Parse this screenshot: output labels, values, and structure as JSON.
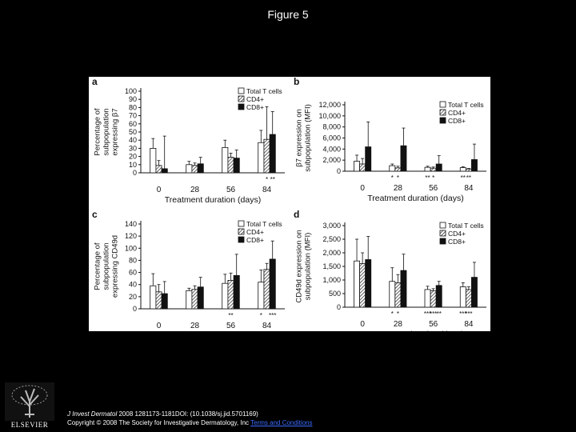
{
  "slide_title": "Figure 5",
  "footer": {
    "journal": "J Invest Dermatol",
    "citation": " 2008 1281173-1181DOI: (10.1038/sj.jid.5701169)",
    "copyright": "Copyright © 2008 The Society for Investigative Dermatology, Inc",
    "terms": "Terms and Conditions"
  },
  "logo": {
    "text": "ELSEVIER",
    "icon": "elsevier-tree-icon"
  },
  "colors": {
    "background": "#000000",
    "panel": "#ffffff",
    "cd8": "#111111",
    "total": "#ffffff"
  },
  "chart_data": [
    {
      "panel_letter": "a",
      "type": "bar",
      "xlabel": "Treatment duration (days)",
      "ylabel": [
        "Percentage of",
        "subpopulation",
        "expressing β7"
      ],
      "categories": [
        "0",
        "28",
        "56",
        "84"
      ],
      "ylim": [
        0,
        100
      ],
      "yticks": [
        "0",
        "10",
        "20",
        "30",
        "40",
        "50",
        "60",
        "70",
        "80",
        "90",
        "100"
      ],
      "legend": {
        "position": "top-right",
        "entries": [
          "Total T cells",
          "CD4+",
          "CD8+"
        ]
      },
      "series": [
        {
          "name": "Total T cells",
          "values": [
            30,
            10,
            31,
            37
          ],
          "errors": [
            12,
            4,
            9,
            15
          ]
        },
        {
          "name": "CD4+",
          "values": [
            9,
            9,
            19,
            41
          ],
          "errors": [
            6,
            3,
            5,
            40
          ]
        },
        {
          "name": "CD8+",
          "values": [
            5,
            11,
            18,
            47
          ],
          "errors": [
            40,
            8,
            10,
            28
          ]
        }
      ],
      "annotations": [
        {
          "category": 3,
          "series": 1,
          "text": "*"
        },
        {
          "category": 3,
          "series": 2,
          "text": "**"
        }
      ]
    },
    {
      "panel_letter": "b",
      "type": "bar",
      "xlabel": "Treatment duration (days)",
      "ylabel": [
        "β7 expression on",
        "subpopulation (MFI)"
      ],
      "categories": [
        "0",
        "28",
        "56",
        "84"
      ],
      "ylim": [
        0,
        12000
      ],
      "yticks": [
        "0",
        "2,000",
        "4,000",
        "6,000",
        "8,000",
        "10,000",
        "12,000"
      ],
      "legend": {
        "position": "top-right",
        "entries": [
          "Total T cells",
          "CD4+",
          "CD8+"
        ]
      },
      "series": [
        {
          "name": "Total T cells",
          "values": [
            1800,
            1000,
            700,
            650
          ],
          "errors": [
            1100,
            300,
            200,
            150
          ]
        },
        {
          "name": "CD4+",
          "values": [
            1300,
            600,
            550,
            400
          ],
          "errors": [
            1000,
            300,
            200,
            100
          ]
        },
        {
          "name": "CD8+",
          "values": [
            4400,
            4600,
            1300,
            2100
          ],
          "errors": [
            4500,
            3200,
            1500,
            2800
          ]
        }
      ],
      "annotations": [
        {
          "category": 1,
          "series": 0,
          "text": "*"
        },
        {
          "category": 1,
          "series": 1,
          "text": "*"
        },
        {
          "category": 2,
          "series": 0,
          "text": "**"
        },
        {
          "category": 2,
          "series": 1,
          "text": "*"
        },
        {
          "category": 3,
          "series": 0,
          "text": "**"
        },
        {
          "category": 3,
          "series": 1,
          "text": "**"
        }
      ]
    },
    {
      "panel_letter": "c",
      "type": "bar",
      "xlabel": "Treatment duration (days)",
      "ylabel": [
        "Percentage of",
        "subpopulation",
        "expressing CD49d"
      ],
      "categories": [
        "0",
        "28",
        "56",
        "84"
      ],
      "ylim": [
        0,
        140
      ],
      "yticks": [
        "0",
        "20",
        "40",
        "60",
        "80",
        "100",
        "120",
        "140"
      ],
      "legend": {
        "position": "top-right",
        "entries": [
          "Total T cells",
          "CD4+",
          "CD8+"
        ]
      },
      "series": [
        {
          "name": "Total T cells",
          "values": [
            38,
            30,
            42,
            44
          ],
          "errors": [
            20,
            4,
            15,
            20
          ]
        },
        {
          "name": "CD4+",
          "values": [
            28,
            32,
            47,
            65
          ],
          "errors": [
            12,
            6,
            12,
            10
          ]
        },
        {
          "name": "CD8+",
          "values": [
            25,
            36,
            55,
            82
          ],
          "errors": [
            20,
            16,
            35,
            30
          ]
        }
      ],
      "annotations": [
        {
          "category": 2,
          "series": 1,
          "text": "**"
        },
        {
          "category": 3,
          "series": 0,
          "text": "*"
        },
        {
          "category": 3,
          "series": 2,
          "text": "***"
        }
      ]
    },
    {
      "panel_letter": "d",
      "type": "bar",
      "xlabel": "Treatment duration (days)",
      "ylabel": [
        "CD49d expression on",
        "subpopulation (MFI)"
      ],
      "categories": [
        "0",
        "28",
        "56",
        "84"
      ],
      "ylim": [
        0,
        3000
      ],
      "yticks": [
        "0",
        "500",
        "1,000",
        "1,500",
        "2,000",
        "2,500",
        "3,000"
      ],
      "legend": {
        "position": "top-right",
        "entries": [
          "Total T cells",
          "CD4+",
          "CD8+"
        ]
      },
      "series": [
        {
          "name": "Total T cells",
          "values": [
            1700,
            950,
            650,
            750
          ],
          "errors": [
            800,
            500,
            120,
            150
          ]
        },
        {
          "name": "CD4+",
          "values": [
            1600,
            900,
            600,
            650
          ],
          "errors": [
            400,
            300,
            80,
            100
          ]
        },
        {
          "name": "CD8+",
          "values": [
            1750,
            1350,
            800,
            1100
          ],
          "errors": [
            850,
            600,
            150,
            550
          ]
        }
      ],
      "annotations": [
        {
          "category": 1,
          "series": 0,
          "text": "*"
        },
        {
          "category": 1,
          "series": 1,
          "text": "*"
        },
        {
          "category": 2,
          "series": 0,
          "text": "***"
        },
        {
          "category": 2,
          "series": 1,
          "text": "***"
        },
        {
          "category": 2,
          "series": 2,
          "text": "**"
        },
        {
          "category": 3,
          "series": 0,
          "text": "***"
        },
        {
          "category": 3,
          "series": 1,
          "text": "***"
        }
      ]
    }
  ]
}
